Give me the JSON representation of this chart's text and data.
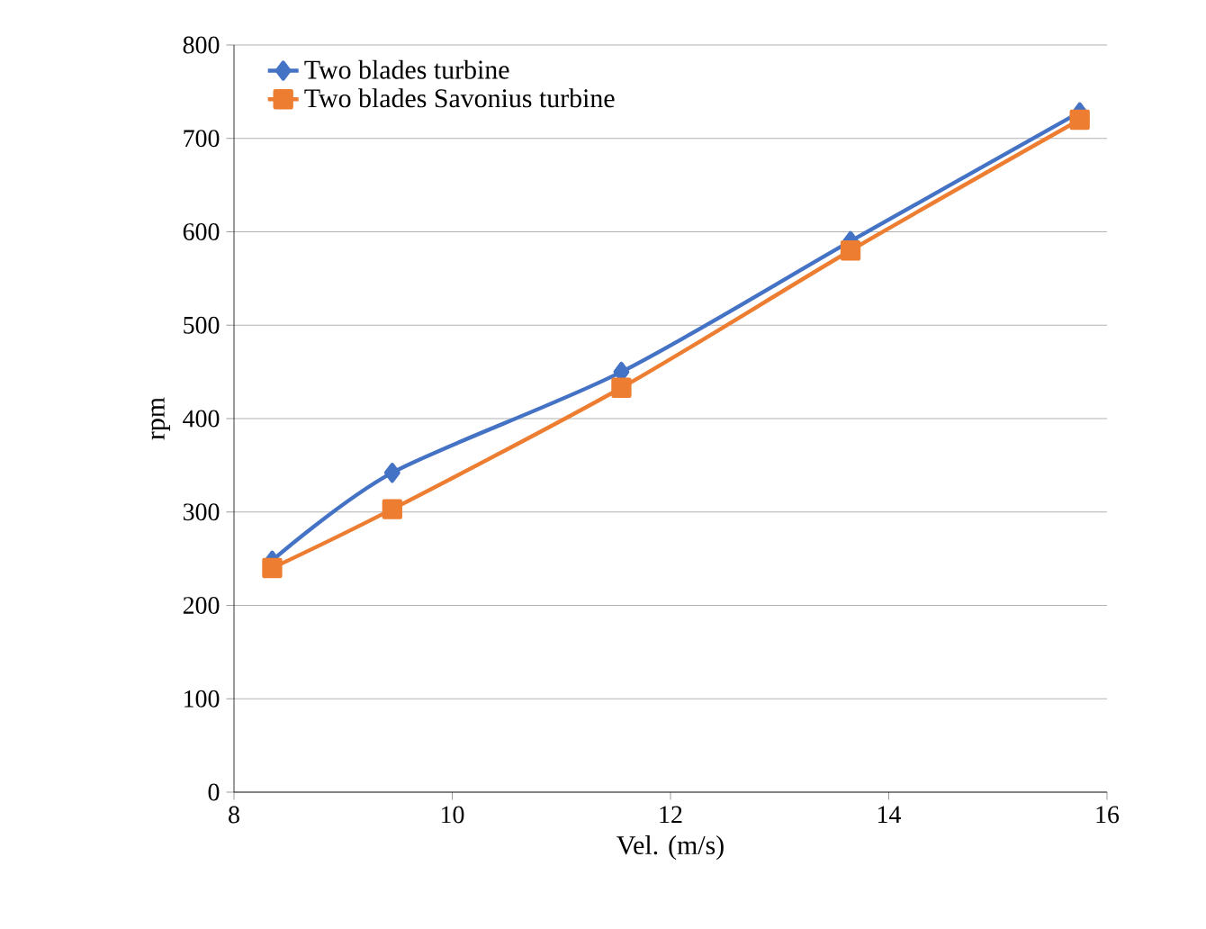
{
  "chart_data": {
    "type": "line",
    "xlabel": "Vel. (m/s)",
    "ylabel": "rpm",
    "x": [
      8.35,
      9.45,
      11.55,
      13.65,
      15.75
    ],
    "series": [
      {
        "name": "Two blades turbine",
        "color": "#4472c4",
        "marker": "diamond",
        "values": [
          248,
          342,
          450,
          590,
          728
        ]
      },
      {
        "name": "Two blades Savonius turbine",
        "color": "#ed7d31",
        "marker": "square",
        "values": [
          240,
          303,
          433,
          580,
          720
        ]
      }
    ],
    "xlim": [
      8,
      16
    ],
    "xticks": [
      8,
      10,
      12,
      14,
      16
    ],
    "ylim": [
      0,
      800
    ],
    "yticks": [
      0,
      100,
      200,
      300,
      400,
      500,
      600,
      700,
      800
    ],
    "grid": "y",
    "legend": "top left"
  }
}
